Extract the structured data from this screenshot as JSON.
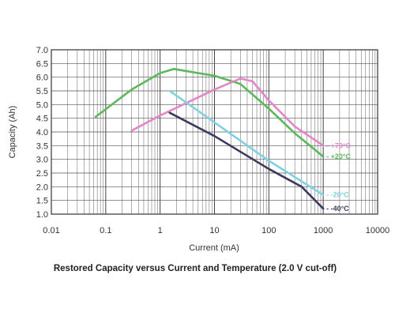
{
  "chart_data": {
    "type": "line",
    "title": "Restored Capacity versus Current and Temperature (2.0 V cut-off)",
    "xlabel": "Current (mA)",
    "ylabel": "Capacity (Ah)",
    "xscale": "log",
    "xlim": [
      0.01,
      10000
    ],
    "ylim": [
      1.0,
      7.0
    ],
    "xticks": [
      0.01,
      0.1,
      1,
      10,
      100,
      1000,
      10000
    ],
    "xtick_labels": [
      "0.01",
      "0.1",
      "1",
      "10",
      "100",
      "1000",
      "10000"
    ],
    "yticks": [
      1.0,
      1.5,
      2.0,
      2.5,
      3.0,
      3.5,
      4.0,
      4.5,
      5.0,
      5.5,
      6.0,
      6.5,
      7.0
    ],
    "ytick_labels": [
      "1.0",
      "1.5",
      "2.0",
      "2.5",
      "3.0",
      "3.5",
      "4.0",
      "4.5",
      "5.0",
      "5.5",
      "6.0",
      "6.5",
      "7.0"
    ],
    "grid": true,
    "series": [
      {
        "name": "+20°C",
        "color": "#5cb85c",
        "label_value": 3.1,
        "x": [
          0.065,
          0.3,
          1.0,
          1.8,
          3.5,
          10,
          30,
          100,
          300,
          1000
        ],
        "y": [
          4.55,
          5.55,
          6.15,
          6.3,
          6.2,
          6.05,
          5.75,
          4.85,
          3.95,
          3.1
        ]
      },
      {
        "name": "+70°C",
        "color": "#e386c8",
        "label_value": 3.5,
        "x": [
          0.3,
          1.0,
          3.0,
          10,
          30,
          50,
          100,
          300,
          1000
        ],
        "y": [
          4.05,
          4.6,
          5.05,
          5.55,
          5.95,
          5.85,
          5.15,
          4.2,
          3.5
        ]
      },
      {
        "name": "-20°C",
        "color": "#7fd0e3",
        "label_value": 1.7,
        "x": [
          1.5,
          10,
          100,
          1000
        ],
        "y": [
          5.5,
          4.35,
          2.95,
          1.7
        ]
      },
      {
        "name": "-40°C",
        "color": "#3b3b5c",
        "label_value": 1.2,
        "x": [
          1.5,
          10,
          100,
          400,
          1000
        ],
        "y": [
          4.7,
          3.85,
          2.65,
          2.0,
          1.2
        ]
      }
    ]
  }
}
